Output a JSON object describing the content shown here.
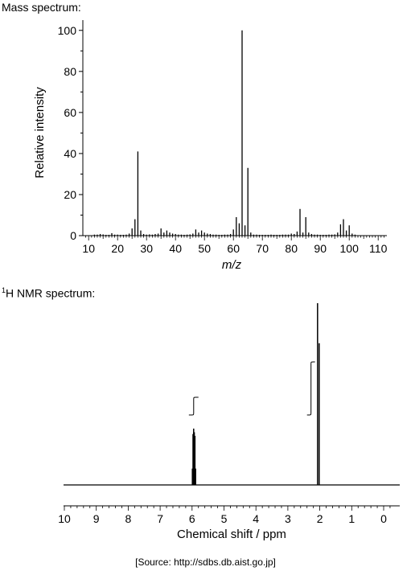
{
  "ms_heading": "Mass spectrum:",
  "nmr_heading_sup": "1",
  "nmr_heading": "H NMR spectrum:",
  "source": "[Source: http://sdbs.db.aist.go.jp]",
  "chart_data": [
    {
      "type": "bar",
      "title": "",
      "xlabel": "m/z",
      "ylabel": "Relative intensity",
      "xlim": [
        8,
        113
      ],
      "ylim": [
        0,
        105
      ],
      "x_ticks": [
        10,
        20,
        30,
        40,
        50,
        60,
        70,
        80,
        90,
        100,
        110
      ],
      "y_ticks": [
        0,
        20,
        40,
        60,
        80,
        100
      ],
      "grid": false,
      "x": [
        12,
        13,
        14,
        15,
        16,
        17,
        18,
        19,
        20,
        21,
        22,
        23,
        24,
        25,
        26,
        27,
        28,
        29,
        30,
        31,
        32,
        33,
        34,
        35,
        36,
        37,
        38,
        39,
        40,
        41,
        42,
        43,
        44,
        45,
        46,
        47,
        48,
        49,
        50,
        51,
        52,
        53,
        54,
        55,
        56,
        57,
        58,
        59,
        60,
        61,
        62,
        63,
        64,
        65,
        66,
        67,
        68,
        69,
        70,
        71,
        72,
        73,
        74,
        75,
        76,
        77,
        78,
        79,
        80,
        81,
        82,
        83,
        84,
        85,
        86,
        87,
        88,
        89,
        90,
        91,
        92,
        93,
        94,
        95,
        96,
        97,
        98,
        99,
        100,
        101,
        102
      ],
      "values": [
        0.5,
        0.5,
        0.8,
        0.6,
        0.4,
        0.4,
        1.2,
        0.5,
        0.5,
        0.4,
        0.4,
        0.5,
        1.0,
        3.5,
        8,
        41,
        2.5,
        0.8,
        0.5,
        0.6,
        0.5,
        0.8,
        1.0,
        3.5,
        1.5,
        2.5,
        1.5,
        1.0,
        0.8,
        0.5,
        0.5,
        0.4,
        0.5,
        0.6,
        1.0,
        3,
        1.5,
        2.5,
        1.5,
        1.0,
        0.8,
        0.5,
        0.5,
        0.4,
        0.4,
        0.5,
        0.5,
        0.8,
        3,
        9,
        6,
        100,
        5,
        33,
        1.5,
        0.5,
        0.5,
        0.4,
        0.4,
        0.4,
        0.4,
        0.5,
        0.4,
        0.4,
        0.4,
        0.5,
        0.5,
        0.5,
        1.0,
        0.8,
        2.0,
        13,
        1.5,
        9,
        1.5,
        0.8,
        0.5,
        0.5,
        0.4,
        0.4,
        0.4,
        0.5,
        0.5,
        0.6,
        1.5,
        5.5,
        8,
        2.5,
        5,
        1.0,
        0.5
      ]
    },
    {
      "type": "line",
      "title": "",
      "xlabel": "Chemical shift / ppm",
      "ylabel": "",
      "xlim": [
        10,
        -0.4
      ],
      "x_reversed": true,
      "x_ticks": [
        10,
        9,
        8,
        7,
        6,
        5,
        4,
        3,
        2,
        1,
        0
      ],
      "grid": false,
      "peaks": [
        {
          "ppm": 5.99,
          "height": 0.09
        },
        {
          "ppm": 5.97,
          "height": 0.28
        },
        {
          "ppm": 5.95,
          "height": 0.31
        },
        {
          "ppm": 5.93,
          "height": 0.29
        },
        {
          "ppm": 5.91,
          "height": 0.27
        },
        {
          "ppm": 5.89,
          "height": 0.09
        },
        {
          "ppm": 2.07,
          "height": 1.0
        },
        {
          "ppm": 2.02,
          "height": 0.78
        }
      ],
      "integrals": [
        {
          "from_ppm": 6.1,
          "to_ppm": 5.8,
          "height_ratio": 1
        },
        {
          "from_ppm": 2.4,
          "to_ppm": 2.15,
          "height_ratio": 3
        }
      ]
    }
  ]
}
